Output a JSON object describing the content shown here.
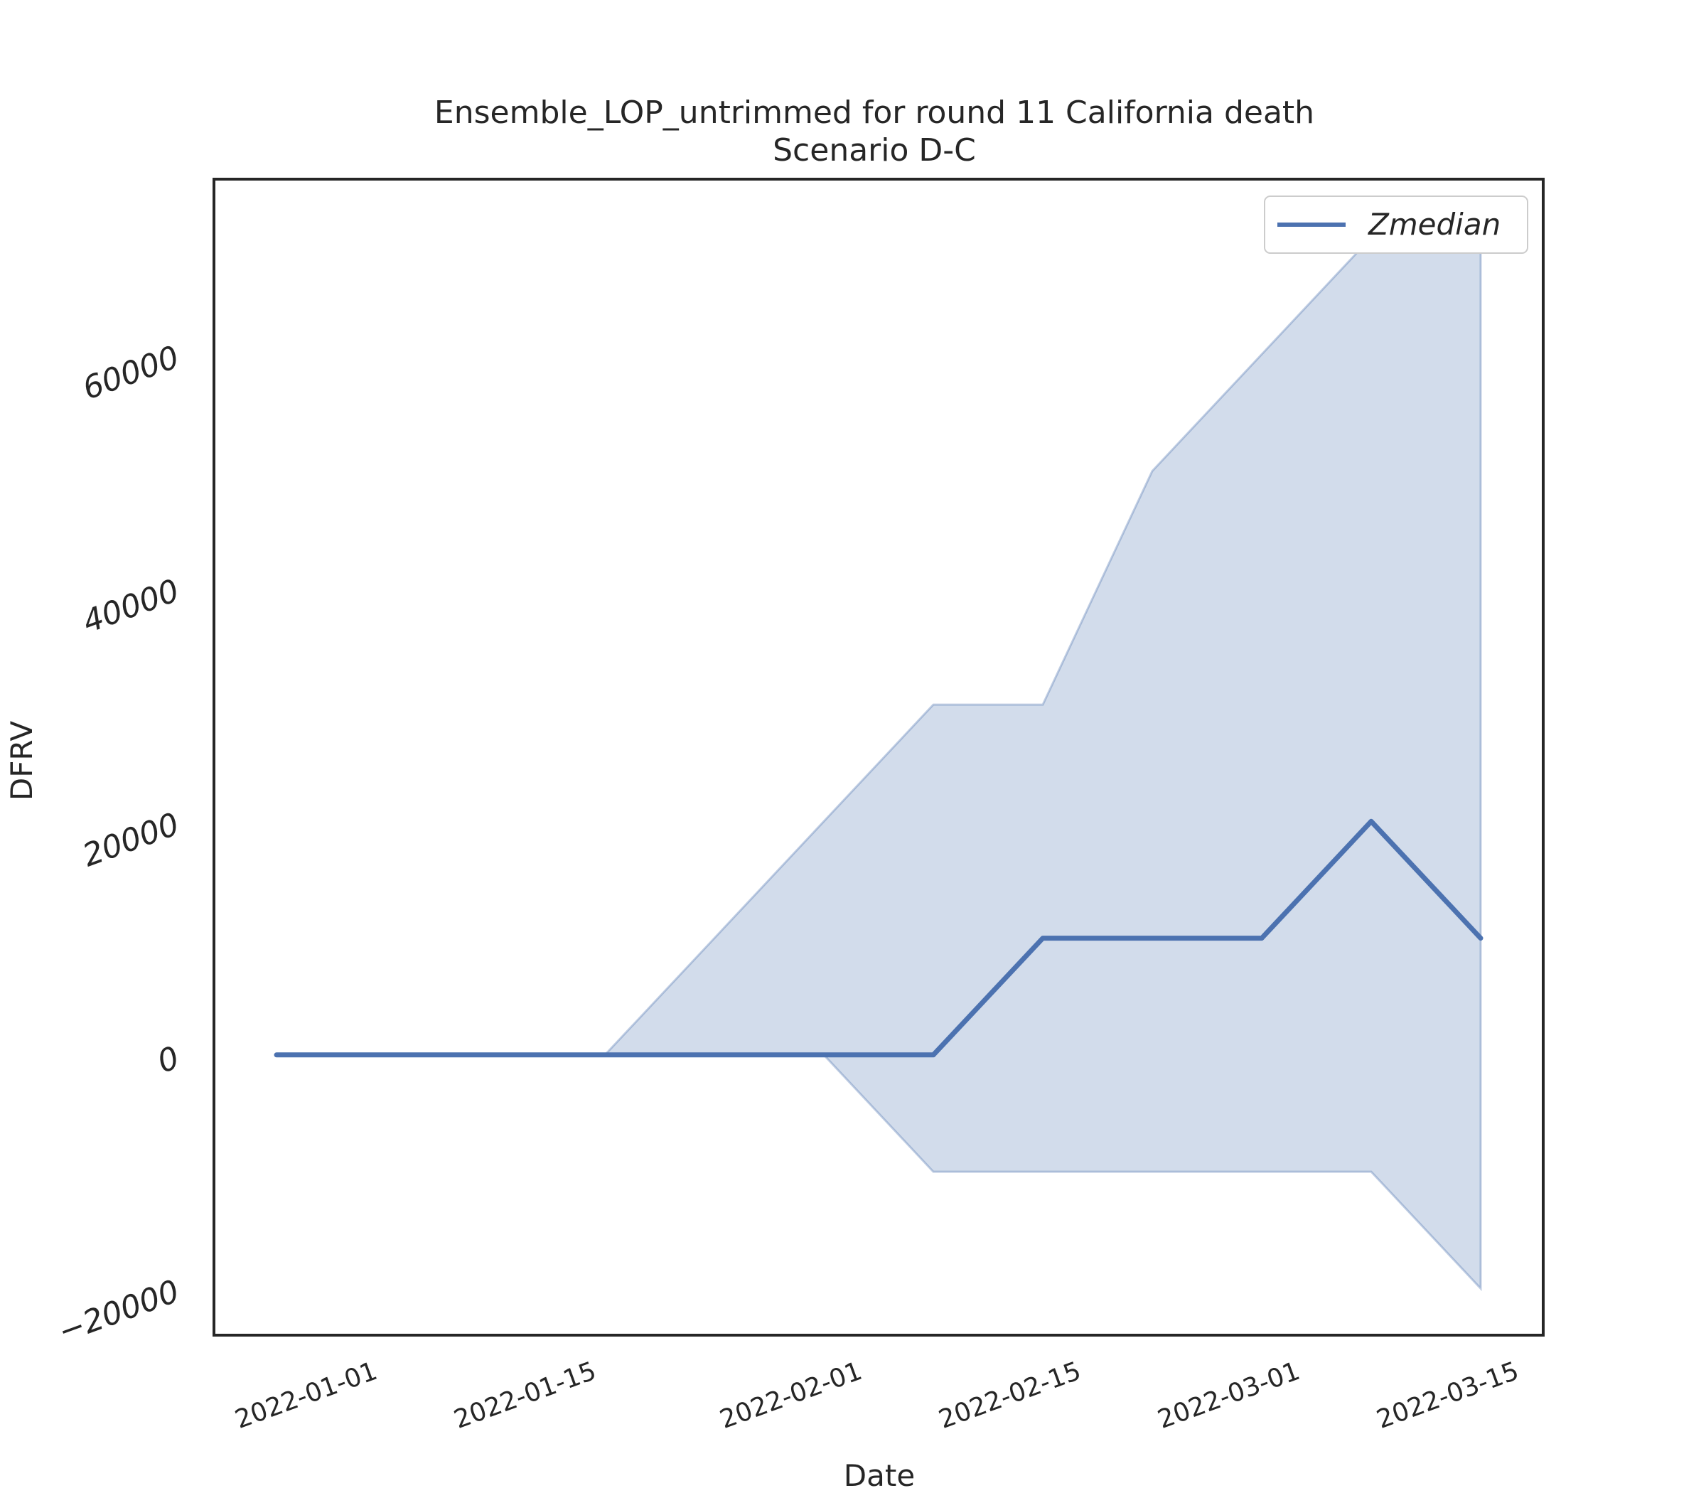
{
  "chart_data": {
    "type": "line",
    "title": "Ensemble_LOP_untrimmed for round 11 California death",
    "subtitle": "Scenario D-C",
    "xlabel": "Date",
    "ylabel": "DFRV",
    "x": [
      "2021-12-26",
      "2022-01-02",
      "2022-01-09",
      "2022-01-16",
      "2022-01-23",
      "2022-01-30",
      "2022-02-06",
      "2022-02-13",
      "2022-02-20",
      "2022-02-27",
      "2022-03-06",
      "2022-03-13"
    ],
    "x_ticks": [
      "2022-01-01",
      "2022-01-15",
      "2022-02-01",
      "2022-02-15",
      "2022-03-01",
      "2022-03-15"
    ],
    "xlim": [
      "2021-12-22",
      "2022-03-17"
    ],
    "ylim": [
      -24000,
      75000
    ],
    "y_ticks": [
      -20000,
      0,
      20000,
      40000,
      60000
    ],
    "y_tick_labels": [
      "−20000",
      "0",
      "20000",
      "40000",
      "60000"
    ],
    "series": [
      {
        "name": "Zmedian",
        "color": "#4c72b0",
        "values": [
          0,
          0,
          0,
          0,
          0,
          0,
          0,
          10000,
          10000,
          10000,
          20000,
          10000
        ]
      }
    ],
    "band": {
      "color": "#4c72b0",
      "opacity": 0.25,
      "lower": [
        0,
        0,
        0,
        0,
        0,
        0,
        -10000,
        -10000,
        -10000,
        -10000,
        -10000,
        -20000
      ],
      "upper": [
        0,
        0,
        0,
        0,
        10000,
        20000,
        30000,
        30000,
        50000,
        60000,
        70000,
        70000
      ]
    },
    "legend": {
      "placement": "top-right"
    },
    "grid": false
  }
}
